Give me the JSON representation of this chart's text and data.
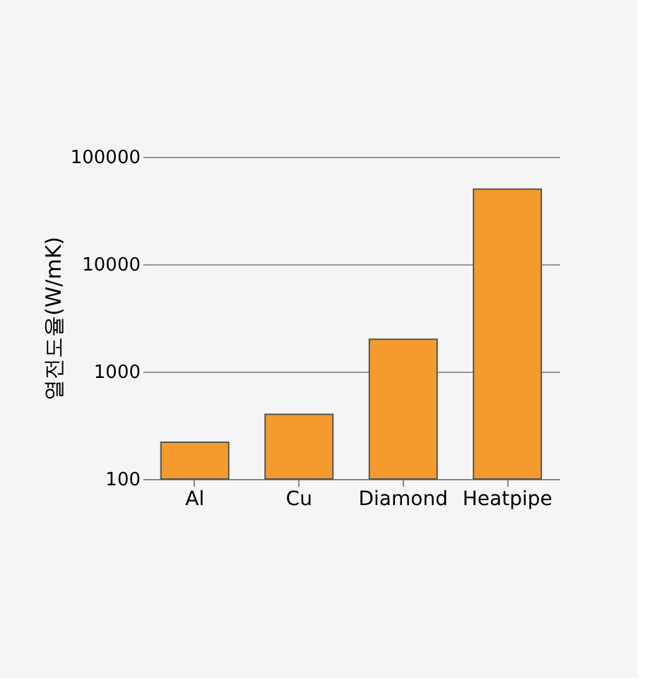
{
  "chart_data": {
    "type": "bar",
    "ylabel": "열전도율(W/mK)",
    "categories": [
      "Al",
      "Cu",
      "Diamond",
      "Heatpipe"
    ],
    "series": [
      {
        "color": "#f59a2c",
        "values": [
          220,
          400,
          2000,
          50000
        ]
      }
    ],
    "log": "y",
    "ylim": [
      100,
      100000
    ],
    "yticks": [
      100,
      1000,
      10000,
      100000
    ],
    "grid": "y"
  }
}
